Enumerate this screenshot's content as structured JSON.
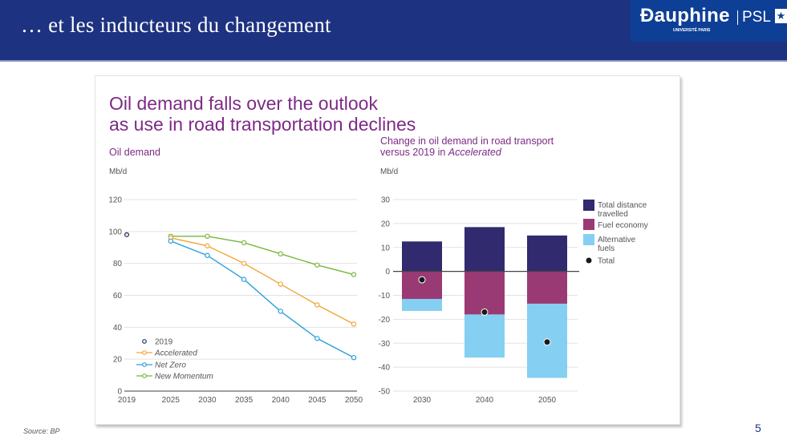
{
  "slide": {
    "title": "… et les inducteurs du changement",
    "logo": {
      "name": "Ɖauphine",
      "subtitle": "UNIVERSITÉ PARIS",
      "psl": "PSL",
      "star": "★"
    },
    "source": "Source: BP",
    "page_number": "5"
  },
  "figure": {
    "title_line1": "Oil demand falls over the outlook",
    "title_line2": "as use in road transportation declines"
  },
  "colors": {
    "header_bg": "#1d3280",
    "title_purple": "#7d2a86",
    "accelerated": "#f0a637",
    "net_zero": "#2a9fd8",
    "new_momentum": "#78b63a",
    "point_2019": "#2b2d6b",
    "total_distance": "#312a6e",
    "fuel_economy": "#9a3a74",
    "alternative_fuels": "#85cff3",
    "total": "#1a1a1a"
  },
  "chart_data": [
    {
      "type": "line",
      "title": "Oil demand",
      "ylabel": "Mb/d",
      "xlabel": "",
      "ylim": [
        0,
        120
      ],
      "yticks": [
        0,
        20,
        40,
        60,
        80,
        100,
        120
      ],
      "x": [
        2019,
        2025,
        2030,
        2035,
        2040,
        2045,
        2050
      ],
      "xticks": [
        "2019",
        "2025",
        "2030",
        "2035",
        "2040",
        "2045",
        "2050"
      ],
      "grid": true,
      "legend_position": "bottom-left",
      "points": [
        {
          "name": "2019",
          "x": 2019,
          "y": 98
        }
      ],
      "series": [
        {
          "name": "Accelerated",
          "x": [
            2025,
            2030,
            2035,
            2040,
            2045,
            2050
          ],
          "values": [
            96,
            91,
            80,
            67,
            54,
            42
          ]
        },
        {
          "name": "Net Zero",
          "x": [
            2025,
            2030,
            2035,
            2040,
            2045,
            2050
          ],
          "values": [
            94,
            85,
            70,
            50,
            33,
            21
          ]
        },
        {
          "name": "New Momentum",
          "x": [
            2025,
            2030,
            2035,
            2040,
            2045,
            2050
          ],
          "values": [
            97,
            97,
            93,
            86,
            79,
            73
          ]
        }
      ],
      "legend": [
        "2019",
        "Accelerated",
        "Net Zero",
        "New Momentum"
      ]
    },
    {
      "type": "bar",
      "stacked": true,
      "title": "Change in oil demand in road transport versus 2019 in Accelerated",
      "title_line1": "Change in oil demand in road transport",
      "title_line2_prefix": "versus 2019 in ",
      "title_line2_italic": "Accelerated",
      "ylabel": "Mb/d",
      "xlabel": "",
      "ylim": [
        -50,
        30
      ],
      "yticks": [
        30,
        20,
        10,
        0,
        -10,
        -20,
        -30,
        -40,
        -50
      ],
      "categories": [
        "2030",
        "2040",
        "2050"
      ],
      "grid": true,
      "legend_position": "right",
      "series": [
        {
          "name": "Total distance travelled",
          "values": [
            12.5,
            18.5,
            15
          ]
        },
        {
          "name": "Fuel economy",
          "values": [
            -11.5,
            -18,
            -13.5
          ]
        },
        {
          "name": "Alternative fuels",
          "values": [
            -5,
            -18,
            -31
          ]
        }
      ],
      "total": {
        "name": "Total",
        "values": [
          -3.5,
          -17,
          -29.5
        ]
      },
      "legend": [
        "Total distance travelled",
        "Fuel economy",
        "Alternative fuels",
        "Total"
      ]
    }
  ]
}
